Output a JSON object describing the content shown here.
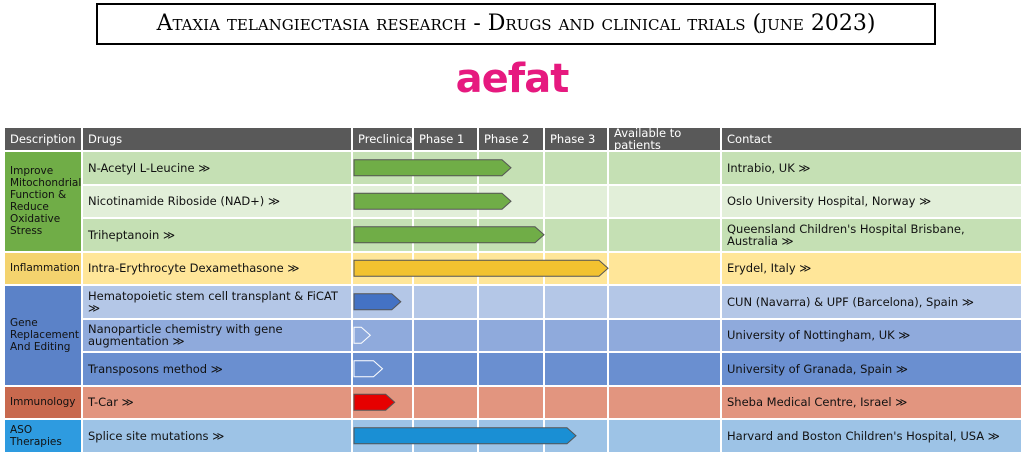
{
  "header": {
    "title": "Ataxia telangiectasia research - Drugs and clinical trials (june 2023)",
    "logo": "aefat"
  },
  "table": {
    "columns": [
      "Description",
      "Drugs",
      "Preclinical",
      "Phase 1",
      "Phase 2",
      "Phase 3",
      "Available to patients",
      "Contact"
    ],
    "groups": [
      {
        "label": "Improve Mitochondrial Function & Reduce Oxidative Stress",
        "color": "#70ad47",
        "row_colors": [
          "#c5e0b4",
          "#e2efd9",
          "#c5e0b4"
        ],
        "arrow_color": "#70ad47",
        "rows": [
          {
            "drug": "N-Acetyl L-Leucine ≫",
            "contact": "Intrabio, UK ≫",
            "progress": 2.5
          },
          {
            "drug": "Nicotinamide Riboside (NAD+) ≫",
            "contact": "Oslo University Hospital, Norway ≫",
            "progress": 2.5
          },
          {
            "drug": "Triheptanoin ≫",
            "contact": "Queensland Children's Hospital Brisbane, Australia ≫",
            "progress": 3
          }
        ]
      },
      {
        "label": "Inflammation",
        "color": "#f4d36e",
        "row_colors": [
          "#ffe699"
        ],
        "arrow_color": "#f2c230",
        "rows": [
          {
            "drug": "Intra-Erythrocyte Dexamethasone ≫",
            "contact": "Erydel, Italy ≫",
            "progress": 4
          }
        ]
      },
      {
        "label": "Gene Replacement And Editing",
        "color": "#5b82c8",
        "row_colors": [
          "#b4c7e7",
          "#8faadc",
          "#6a8fd0"
        ],
        "arrow_color": "#4472c4",
        "rows": [
          {
            "drug": "Hematopoietic stem cell transplant & FiCAT ≫",
            "contact": "CUN (Navarra) & UPF (Barcelona), Spain ≫",
            "progress": 0.8
          },
          {
            "drug": "Nanoparticle chemistry with gene augmentation ≫",
            "contact": "University of Nottingham, UK ≫",
            "progress": 0.3
          },
          {
            "drug": "Transposons method ≫",
            "contact": "University of Granada, Spain ≫",
            "progress": 0.5
          }
        ]
      },
      {
        "label": "Immunology",
        "color": "#c8694e",
        "row_colors": [
          "#e2957f"
        ],
        "arrow_color": "#e60000",
        "rows": [
          {
            "drug": "T-Car ≫",
            "contact": "Sheba Medical Centre, Israel ≫",
            "progress": 0.7
          }
        ]
      },
      {
        "label": "ASO Therapies",
        "color": "#2e9be0",
        "row_colors": [
          "#9dc3e6"
        ],
        "arrow_color": "#1a8fd4",
        "rows": [
          {
            "drug": "Splice site mutations ≫",
            "contact": "Harvard and Boston Children's Hospital, USA ≫",
            "progress": 3.5
          }
        ]
      }
    ]
  }
}
